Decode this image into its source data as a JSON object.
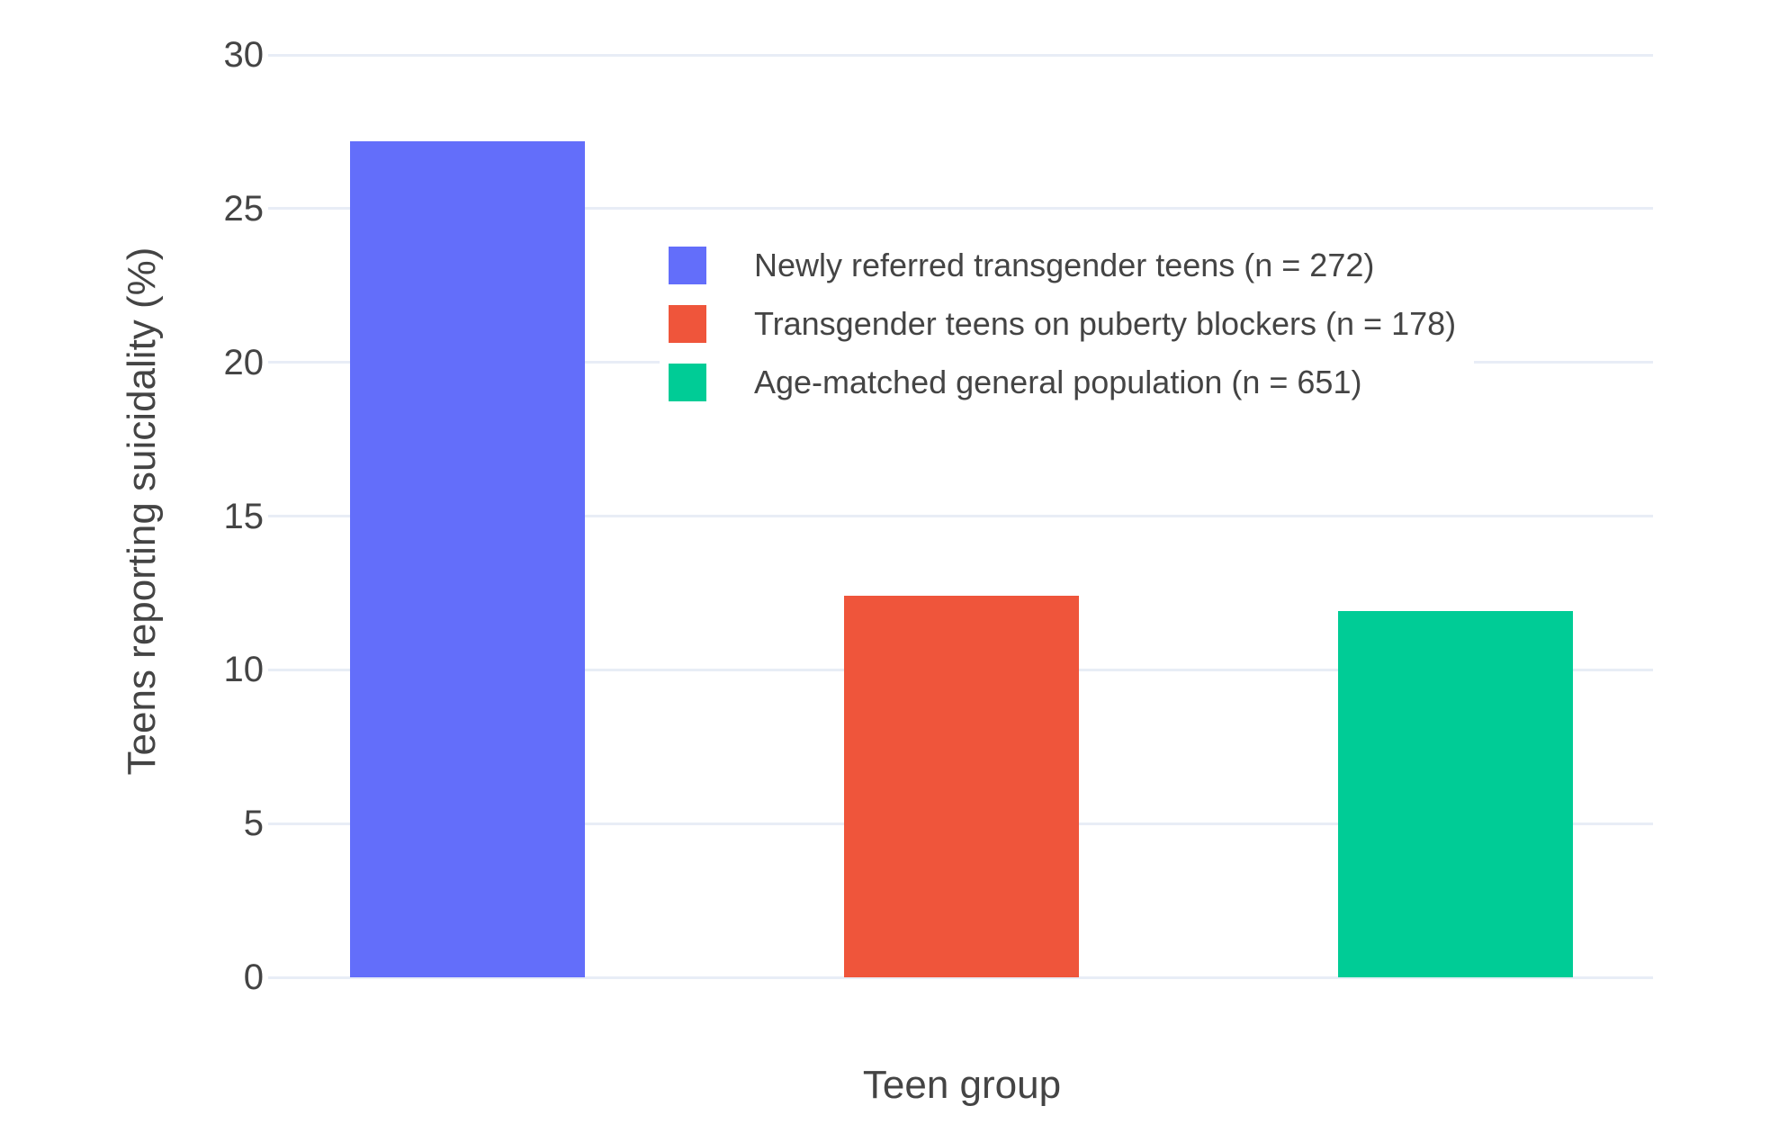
{
  "chart_data": {
    "type": "bar",
    "title": "",
    "xlabel": "Teen group",
    "ylabel": "Teens reporting suicidality (%)",
    "series": [
      {
        "name": "Newly referred transgender teens (n = 272)",
        "value": 27.2,
        "color": "#636EFA"
      },
      {
        "name": "Transgender teens on puberty blockers (n = 178)",
        "value": 12.4,
        "color": "#EF553B"
      },
      {
        "name": "Age-matched general population (n = 651)",
        "value": 11.9,
        "color": "#00CC96"
      }
    ],
    "ylim": [
      0,
      30
    ],
    "yticks": [
      0,
      5,
      10,
      15,
      20,
      25,
      30
    ],
    "grid": true,
    "x_tick_labels": [],
    "legend_position": "inside-top-right",
    "text_color": "#444444",
    "grid_color": "#E8EDF6",
    "background_color": "#ffffff"
  }
}
